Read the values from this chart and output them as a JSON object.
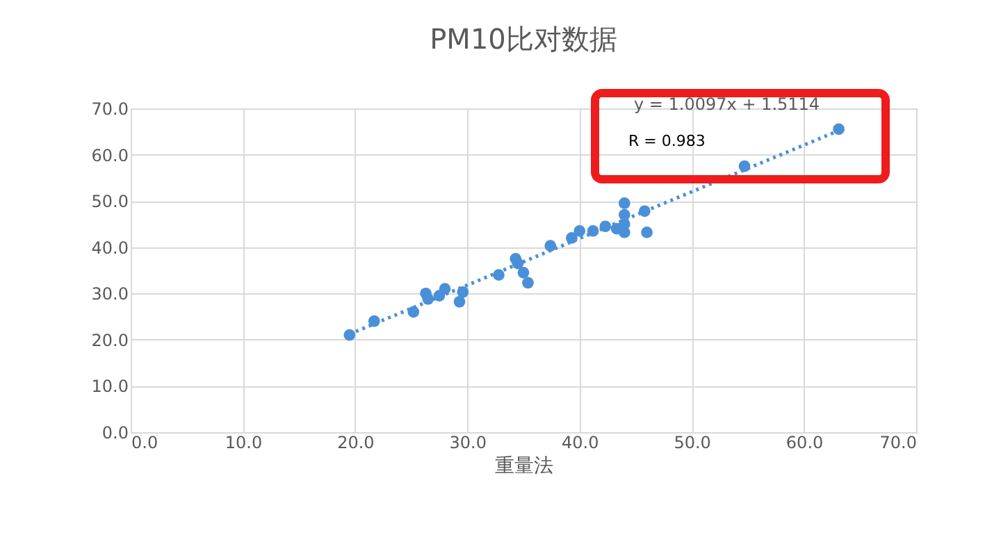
{
  "chart_data": {
    "type": "scatter",
    "title": "PM10比对数据",
    "xlabel": "重量法",
    "x": [
      19.5,
      21.7,
      25.2,
      26.3,
      26.5,
      27.5,
      28.0,
      29.3,
      29.6,
      32.8,
      34.3,
      34.5,
      35.0,
      35.4,
      37.4,
      39.3,
      40.0,
      41.2,
      42.3,
      43.3,
      44.0,
      44.0,
      44.0,
      44.0,
      45.8,
      46.0,
      54.7,
      63.1
    ],
    "series": [
      {
        "marker": "circle",
        "color": "#4a90d9",
        "values": [
          21.0,
          24.0,
          26.0,
          30.0,
          28.8,
          29.5,
          31.0,
          28.2,
          30.3,
          34.0,
          37.5,
          36.5,
          34.5,
          32.3,
          40.3,
          42.0,
          43.5,
          43.5,
          44.5,
          44.0,
          49.5,
          47.0,
          45.0,
          43.2,
          47.8,
          43.2,
          57.5,
          65.5
        ]
      },
      {
        "type": "line",
        "marker": "none",
        "color": "#4a90d9",
        "line_style": "dotted",
        "x": [
          19.5,
          63.1
        ],
        "values": [
          21.2,
          65.2
        ]
      }
    ],
    "annotations": [
      "y = 1.0097x + 1.5114",
      "R = 0.983"
    ],
    "grid": true,
    "xlim": [
      0,
      70
    ],
    "ylim": [
      0,
      70
    ],
    "xticks": [
      {
        "value": 0,
        "label": "0.0"
      },
      {
        "value": 10,
        "label": "10.0"
      },
      {
        "value": 20,
        "label": "20.0"
      },
      {
        "value": 30,
        "label": "30.0"
      },
      {
        "value": 40,
        "label": "40.0"
      },
      {
        "value": 50,
        "label": "50.0"
      },
      {
        "value": 60,
        "label": "60.0"
      },
      {
        "value": 70,
        "label": "70.0"
      }
    ],
    "yticks": [
      {
        "value": 0,
        "label": "0.0"
      },
      {
        "value": 10,
        "label": "10.0"
      },
      {
        "value": 20,
        "label": "20.0"
      },
      {
        "value": 30,
        "label": "30.0"
      },
      {
        "value": 40,
        "label": "40.0"
      },
      {
        "value": 50,
        "label": "50.0"
      },
      {
        "value": 60,
        "label": "60.0"
      },
      {
        "value": 70,
        "label": "70.0"
      }
    ]
  }
}
